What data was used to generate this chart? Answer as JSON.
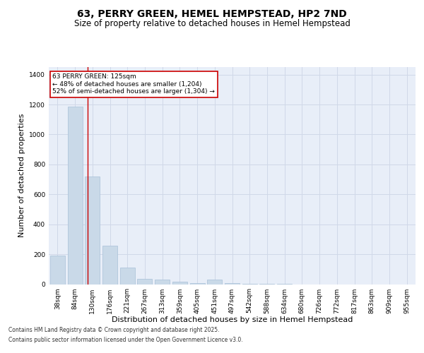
{
  "title1": "63, PERRY GREEN, HEMEL HEMPSTEAD, HP2 7ND",
  "title2": "Size of property relative to detached houses in Hemel Hempstead",
  "xlabel": "Distribution of detached houses by size in Hemel Hempstead",
  "ylabel": "Number of detached properties",
  "categories": [
    "38sqm",
    "84sqm",
    "130sqm",
    "176sqm",
    "221sqm",
    "267sqm",
    "313sqm",
    "359sqm",
    "405sqm",
    "451sqm",
    "497sqm",
    "542sqm",
    "588sqm",
    "634sqm",
    "680sqm",
    "726sqm",
    "772sqm",
    "817sqm",
    "863sqm",
    "909sqm",
    "955sqm"
  ],
  "values": [
    190,
    1185,
    720,
    255,
    110,
    35,
    30,
    18,
    7,
    30,
    7,
    2,
    2,
    1,
    0,
    0,
    0,
    0,
    0,
    0,
    0
  ],
  "bar_color": "#c9d9e8",
  "bar_edge_color": "#a8c0d8",
  "annotation_text": "63 PERRY GREEN: 125sqm\n← 48% of detached houses are smaller (1,204)\n52% of semi-detached houses are larger (1,304) →",
  "annotation_box_color": "#ffffff",
  "annotation_box_edge_color": "#cc0000",
  "vline_x": 1.72,
  "vline_color": "#cc0000",
  "ylim": [
    0,
    1450
  ],
  "yticks": [
    0,
    200,
    400,
    600,
    800,
    1000,
    1200,
    1400
  ],
  "grid_color": "#d0d8e8",
  "bg_color": "#e8eef8",
  "footer1": "Contains HM Land Registry data © Crown copyright and database right 2025.",
  "footer2": "Contains public sector information licensed under the Open Government Licence v3.0.",
  "title_fontsize": 10,
  "subtitle_fontsize": 8.5,
  "axis_fontsize": 8,
  "tick_fontsize": 6.5
}
